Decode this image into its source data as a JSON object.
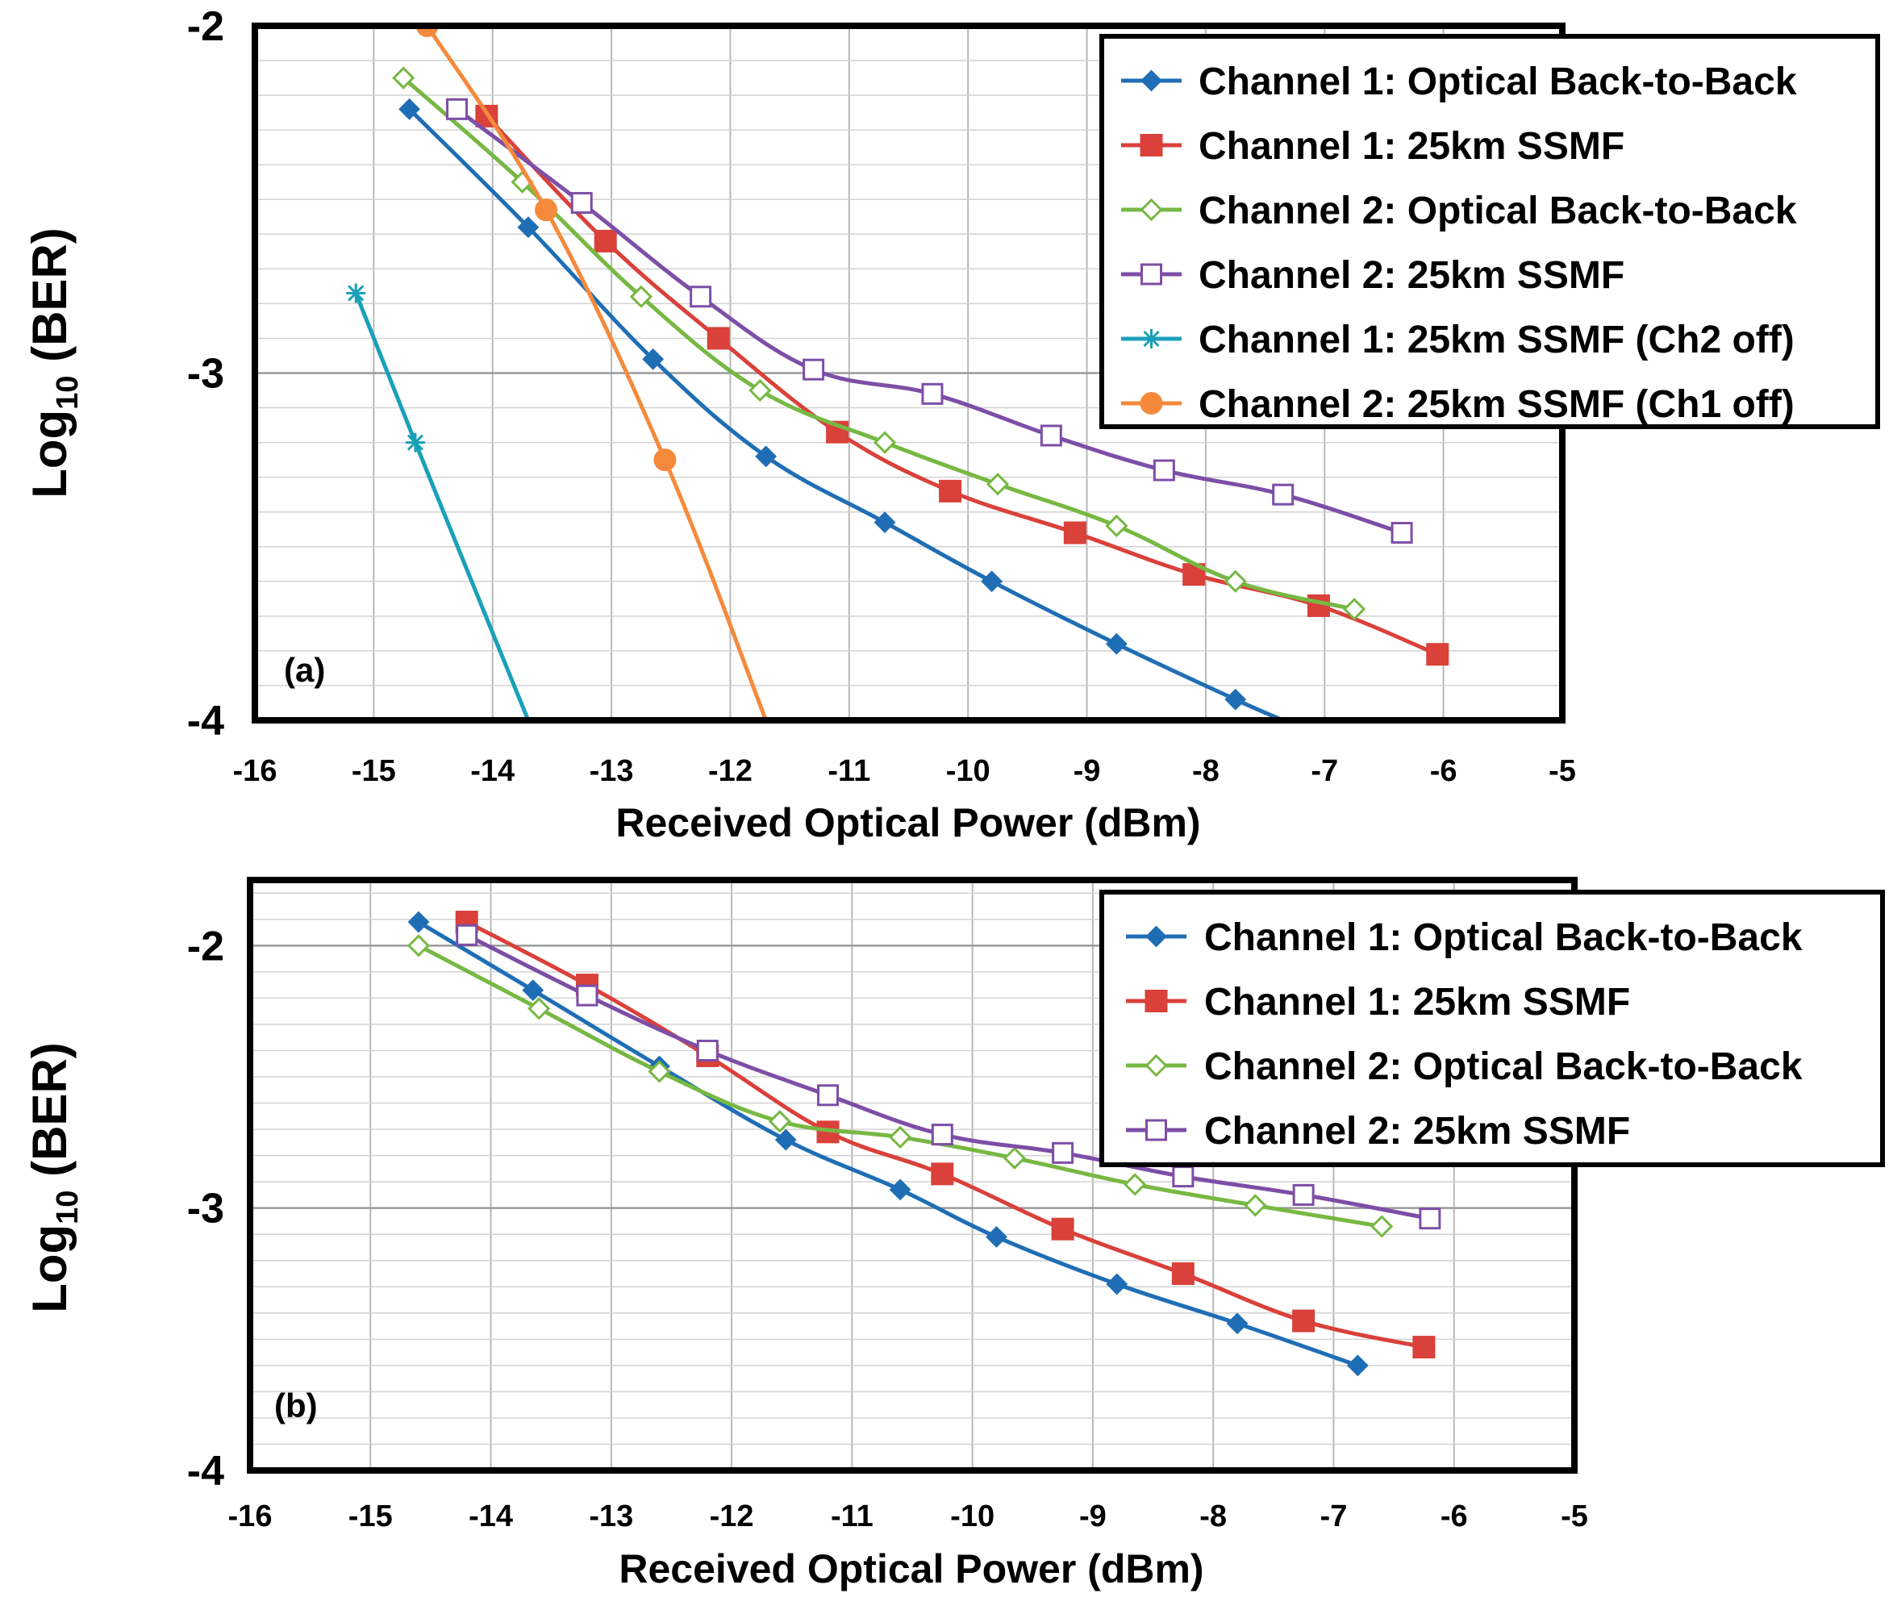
{
  "chart_data": [
    {
      "type": "line",
      "panel_label": "(a)",
      "xlabel": "Received Optical Power (dBm)",
      "ylabel": "Log10 (BER)",
      "ylabel_parts": {
        "base": "Log",
        "sub": "10",
        "rest": " (BER)"
      },
      "xlim": [
        -16,
        -5
      ],
      "ylim": [
        -4,
        -2
      ],
      "xticks": [
        -16,
        -15,
        -14,
        -13,
        -12,
        -11,
        -10,
        -9,
        -8,
        -7,
        -6,
        -5
      ],
      "xtick_labels": [
        "-16",
        "-15",
        "-14",
        "-13",
        "-12",
        "-11",
        "-10",
        "-9",
        "-8",
        "-7",
        "-6",
        "-5"
      ],
      "yticks": [
        -2,
        -3,
        -4
      ],
      "ytick_labels": [
        "-2",
        "-3",
        "-4"
      ],
      "grid": true,
      "legend_position": "top-right",
      "series": [
        {
          "name": "Channel 1: Optical Back-to-Back",
          "color": "#1f6eb5",
          "marker": "diamond",
          "x": [
            -14.7,
            -13.7,
            -12.65,
            -11.7,
            -10.7,
            -9.8,
            -8.75,
            -7.75,
            -7.35
          ],
          "y": [
            -2.24,
            -2.58,
            -2.96,
            -3.24,
            -3.43,
            -3.6,
            -3.78,
            -3.94,
            -4.0
          ]
        },
        {
          "name": "Channel 1: 25km SSMF",
          "color": "#d9413a",
          "marker": "square",
          "x": [
            -14.05,
            -13.05,
            -12.1,
            -11.1,
            -10.15,
            -9.1,
            -8.1,
            -7.05,
            -6.05
          ],
          "y": [
            -2.26,
            -2.62,
            -2.9,
            -3.17,
            -3.34,
            -3.46,
            -3.58,
            -3.67,
            -3.81
          ]
        },
        {
          "name": "Channel 2: Optical Back-to-Back",
          "color": "#77b843",
          "marker": "open-diamond",
          "x": [
            -14.75,
            -13.75,
            -12.75,
            -11.75,
            -10.7,
            -9.75,
            -8.75,
            -7.75,
            -6.75
          ],
          "y": [
            -2.15,
            -2.45,
            -2.78,
            -3.05,
            -3.2,
            -3.32,
            -3.44,
            -3.6,
            -3.68
          ]
        },
        {
          "name": "Channel 2: 25km SSMF",
          "color": "#7d4ea6",
          "marker": "open-square",
          "x": [
            -14.3,
            -13.25,
            -12.25,
            -11.3,
            -10.3,
            -9.3,
            -8.35,
            -7.35,
            -6.35
          ],
          "y": [
            -2.24,
            -2.51,
            -2.78,
            -2.99,
            -3.06,
            -3.18,
            -3.28,
            -3.35,
            -3.46
          ]
        },
        {
          "name": "Channel 1: 25km SSMF (Ch2 off)",
          "color": "#1aa0b8",
          "marker": "star",
          "x": [
            -15.15,
            -14.65,
            -13.7
          ],
          "y": [
            -2.77,
            -3.2,
            -4.0
          ]
        },
        {
          "name": "Channel 2: 25km SSMF (Ch1 off)",
          "color": "#f58a3c",
          "marker": "circle",
          "x": [
            -14.55,
            -13.55,
            -12.55,
            -11.7
          ],
          "y": [
            -2.0,
            -2.53,
            -3.25,
            -4.0
          ]
        }
      ]
    },
    {
      "type": "line",
      "panel_label": "(b)",
      "xlabel": "Received Optical Power (dBm)",
      "ylabel": "Log10 (BER)",
      "ylabel_parts": {
        "base": "Log",
        "sub": "10",
        "rest": " (BER)"
      },
      "xlim": [
        -16,
        -5
      ],
      "ylim": [
        -4,
        -1.75
      ],
      "xticks": [
        -16,
        -15,
        -14,
        -13,
        -12,
        -11,
        -10,
        -9,
        -8,
        -7,
        -6,
        -5
      ],
      "xtick_labels": [
        "-16",
        "-15",
        "-14",
        "-13",
        "-12",
        "-11",
        "-10",
        "-9",
        "-8",
        "-7",
        "-6",
        "-5"
      ],
      "yticks": [
        -2,
        -3,
        -4
      ],
      "ytick_labels": [
        "-2",
        "-3",
        "-4"
      ],
      "grid": true,
      "legend_position": "top-right",
      "series": [
        {
          "name": "Channel 1: Optical Back-to-Back",
          "color": "#1f6eb5",
          "marker": "diamond",
          "x": [
            -14.6,
            -13.65,
            -12.6,
            -11.55,
            -10.6,
            -9.8,
            -8.8,
            -7.8,
            -6.8
          ],
          "y": [
            -1.91,
            -2.17,
            -2.46,
            -2.74,
            -2.93,
            -3.11,
            -3.29,
            -3.44,
            -3.6
          ]
        },
        {
          "name": "Channel 1: 25km SSMF",
          "color": "#d9413a",
          "marker": "square",
          "x": [
            -14.2,
            -13.2,
            -12.2,
            -11.2,
            -10.25,
            -9.25,
            -8.25,
            -7.25,
            -6.25
          ],
          "y": [
            -1.91,
            -2.15,
            -2.42,
            -2.71,
            -2.87,
            -3.08,
            -3.25,
            -3.43,
            -3.53
          ]
        },
        {
          "name": "Channel 2: Optical Back-to-Back",
          "color": "#77b843",
          "marker": "open-diamond",
          "x": [
            -14.6,
            -13.6,
            -12.6,
            -11.6,
            -10.6,
            -9.65,
            -8.65,
            -7.65,
            -6.6
          ],
          "y": [
            -2.0,
            -2.24,
            -2.48,
            -2.67,
            -2.73,
            -2.81,
            -2.91,
            -2.99,
            -3.07
          ]
        },
        {
          "name": "Channel 2: 25km SSMF",
          "color": "#7d4ea6",
          "marker": "open-square",
          "x": [
            -14.2,
            -13.2,
            -12.2,
            -11.2,
            -10.25,
            -9.25,
            -8.25,
            -7.25,
            -6.2
          ],
          "y": [
            -1.96,
            -2.19,
            -2.4,
            -2.57,
            -2.72,
            -2.79,
            -2.88,
            -2.95,
            -3.04
          ]
        }
      ]
    }
  ]
}
